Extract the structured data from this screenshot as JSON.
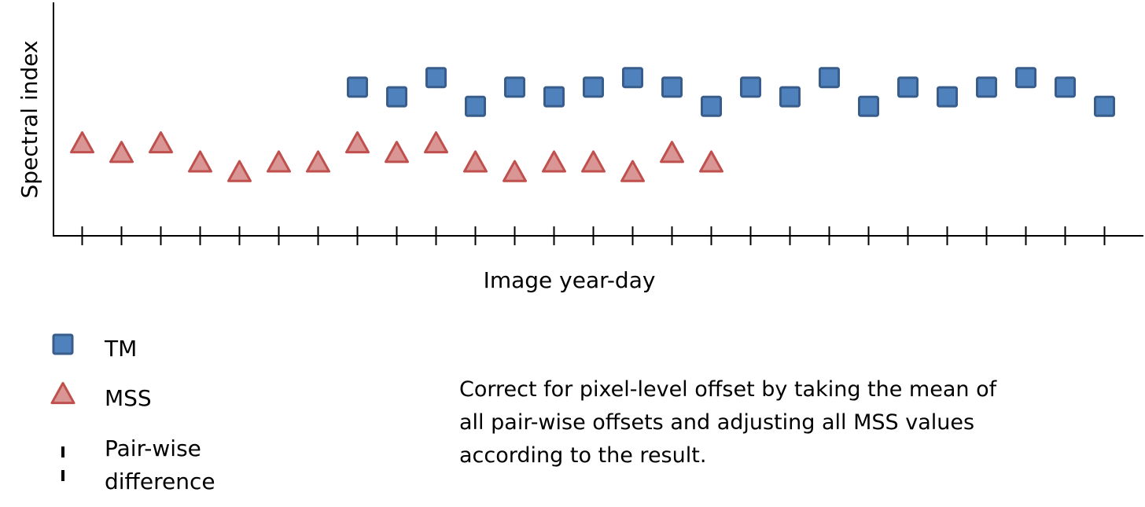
{
  "chart_data": {
    "type": "scatter",
    "xlabel": "Image year-day",
    "ylabel": "Spectral index",
    "x_count": 27,
    "ylim": [
      0,
      10
    ],
    "grid": false,
    "tick_labels": false,
    "series": [
      {
        "name": "TM",
        "marker": "square",
        "color": "#4F81BD",
        "stroke": "#385D8A",
        "points": [
          {
            "x": 8,
            "y": 6.2
          },
          {
            "x": 9,
            "y": 5.8
          },
          {
            "x": 10,
            "y": 6.6
          },
          {
            "x": 11,
            "y": 5.4
          },
          {
            "x": 12,
            "y": 6.2
          },
          {
            "x": 13,
            "y": 5.8
          },
          {
            "x": 14,
            "y": 6.2
          },
          {
            "x": 15,
            "y": 6.6
          },
          {
            "x": 16,
            "y": 6.2
          },
          {
            "x": 17,
            "y": 5.4
          },
          {
            "x": 18,
            "y": 6.2
          },
          {
            "x": 19,
            "y": 5.8
          },
          {
            "x": 20,
            "y": 6.6
          },
          {
            "x": 21,
            "y": 5.4
          },
          {
            "x": 22,
            "y": 6.2
          },
          {
            "x": 23,
            "y": 5.8
          },
          {
            "x": 24,
            "y": 6.2
          },
          {
            "x": 25,
            "y": 6.6
          },
          {
            "x": 26,
            "y": 6.2
          },
          {
            "x": 27,
            "y": 5.4
          }
        ]
      },
      {
        "name": "MSS",
        "marker": "triangle",
        "color": "#D99694",
        "stroke": "#C0504D",
        "points": [
          {
            "x": 1,
            "y": 3.9
          },
          {
            "x": 2,
            "y": 3.5
          },
          {
            "x": 3,
            "y": 3.9
          },
          {
            "x": 4,
            "y": 3.1
          },
          {
            "x": 5,
            "y": 2.7
          },
          {
            "x": 6,
            "y": 3.1
          },
          {
            "x": 7,
            "y": 3.1
          },
          {
            "x": 8,
            "y": 3.9
          },
          {
            "x": 9,
            "y": 3.5
          },
          {
            "x": 10,
            "y": 3.9
          },
          {
            "x": 11,
            "y": 3.1
          },
          {
            "x": 12,
            "y": 2.7
          },
          {
            "x": 13,
            "y": 3.1
          },
          {
            "x": 14,
            "y": 3.1
          },
          {
            "x": 15,
            "y": 2.7
          },
          {
            "x": 16,
            "y": 3.5
          },
          {
            "x": 17,
            "y": 3.1
          }
        ]
      }
    ]
  },
  "legend": {
    "items": [
      {
        "label": "TM",
        "marker": "square"
      },
      {
        "label": "MSS",
        "marker": "triangle"
      },
      {
        "label": "Pair-wise\ndifference",
        "marker": "dashed-line"
      }
    ]
  },
  "note": "Correct for pixel-level offset by taking the mean of\nall pair-wise offsets and adjusting all MSS values\naccording to the result."
}
